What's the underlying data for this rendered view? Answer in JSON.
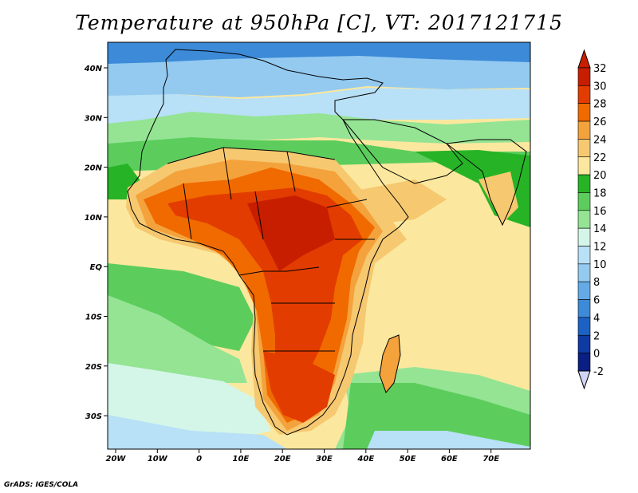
{
  "title": "Temperature at 950hPa [C], VT: 2017121715",
  "credit": "GrADS: IGES/COLA",
  "lon_labels": [
    "20W",
    "10W",
    "0",
    "10E",
    "20E",
    "30E",
    "40E",
    "50E",
    "60E",
    "70E"
  ],
  "lat_labels": [
    "40N",
    "30N",
    "20N",
    "10N",
    "EQ",
    "10S",
    "20S",
    "30S"
  ],
  "colorbar": {
    "labels": [
      "32",
      "30",
      "28",
      "26",
      "24",
      "22",
      "20",
      "18",
      "16",
      "14",
      "12",
      "10",
      "8",
      "6",
      "4",
      "2",
      "0",
      "-2"
    ],
    "colors": [
      "#c81e00",
      "#e23c00",
      "#f06a00",
      "#f4a23c",
      "#f6c870",
      "#fbe89e",
      "#26b426",
      "#5ccd5c",
      "#94e494",
      "#d4f6e8",
      "#b8e0f6",
      "#94caf0",
      "#64aae6",
      "#3c8ad8",
      "#1c62c4",
      "#0e3aa4",
      "#0a1e84"
    ],
    "top_color": "#c81e00",
    "bottom_color": "#d0d4f6"
  }
}
